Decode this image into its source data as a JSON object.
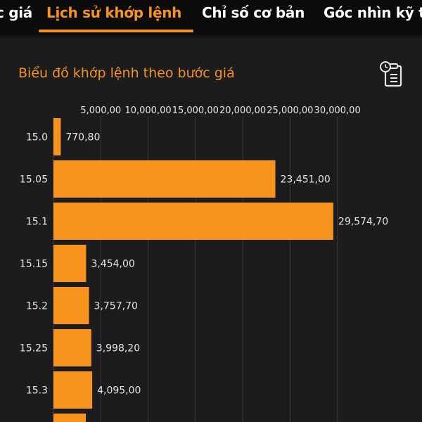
{
  "tabs": [
    {
      "label": "c giá",
      "active": false
    },
    {
      "label": "Lịch sử khớp lệnh",
      "active": true
    },
    {
      "label": "Chỉ số cơ bản",
      "active": false
    },
    {
      "label": "Góc nhìn kỹ t",
      "active": false
    }
  ],
  "colors": {
    "accent": "#f7931e",
    "background": "#1c1c1f",
    "grid": "#3a3a3e"
  },
  "icons": {
    "export": "clipboard-clock-icon"
  },
  "chart_data": {
    "type": "bar",
    "orientation": "horizontal",
    "title": "Biểu đồ khớp lệnh theo bước giá",
    "categories": [
      "15.0",
      "15.05",
      "15.1",
      "15.15",
      "15.2",
      "15.25",
      "15.3"
    ],
    "values": [
      770.8,
      23451,
      29574.7,
      3454,
      3757.7,
      3998.2,
      4095
    ],
    "value_labels": [
      "770,80",
      "23,451,00",
      "29,574,70",
      "3,454,00",
      "3,757,70",
      "3,998,20",
      "4,095,00"
    ],
    "x_ticks": [
      "5,000,00",
      "10,000,00",
      "15,000,00",
      "20,000,00",
      "25,000,00",
      "30,000,00"
    ],
    "x_tick_values": [
      5000,
      10000,
      15000,
      20000,
      25000,
      30000
    ],
    "xlim": [
      0,
      33000
    ],
    "grid": true,
    "axis_position": "top",
    "bar_color": "#f7931e"
  }
}
